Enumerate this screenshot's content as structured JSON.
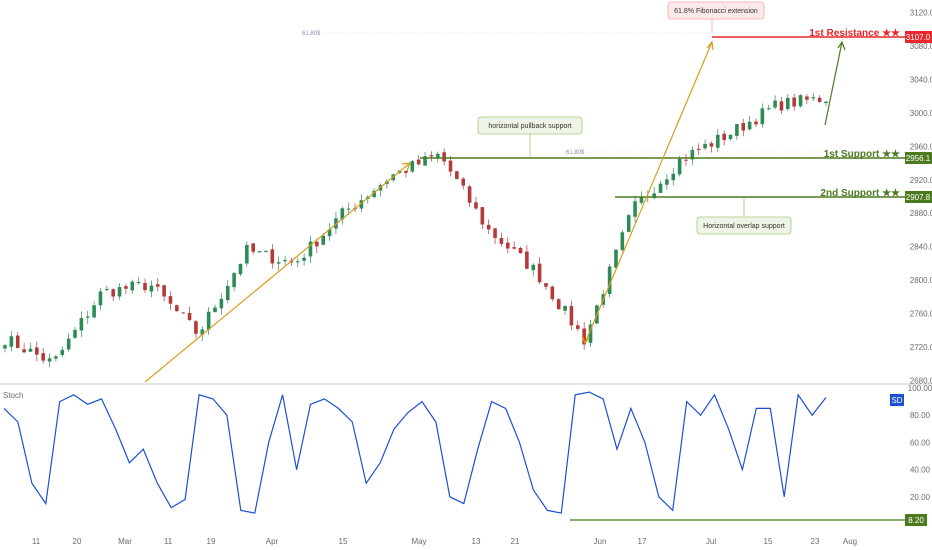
{
  "chart_data": [
    {
      "type": "candlestick",
      "title": "",
      "x_ticks": [
        "11",
        "20",
        "Mar",
        "11",
        "19",
        "Apr",
        "15",
        "May",
        "13",
        "21",
        "Jun",
        "17",
        "Jul",
        "15",
        "23",
        "Aug"
      ],
      "y_ticks": [
        3120.0,
        3080.0,
        3040.0,
        3000.0,
        2960.0,
        2920.0,
        2880.0,
        2840.0,
        2800.0,
        2760.0,
        2720.0,
        2680.0
      ],
      "ylim": [
        2678,
        3128
      ],
      "approx_close_path": [
        {
          "x": "early Feb",
          "y": 2730
        },
        {
          "x": "mid Feb",
          "y": 2700
        },
        {
          "x": "late Feb",
          "y": 2785
        },
        {
          "x": "early Mar",
          "y": 2795
        },
        {
          "x": "mid Mar",
          "y": 2735
        },
        {
          "x": "late Mar",
          "y": 2835
        },
        {
          "x": "early Apr",
          "y": 2820
        },
        {
          "x": "mid Apr",
          "y": 2880
        },
        {
          "x": "late Apr",
          "y": 2925
        },
        {
          "x": "1 May",
          "y": 2950
        },
        {
          "x": "mid May",
          "y": 2860
        },
        {
          "x": "late May",
          "y": 2810
        },
        {
          "x": "3 Jun",
          "y": 2728
        },
        {
          "x": "mid Jun",
          "y": 2885
        },
        {
          "x": "late Jun",
          "y": 2945
        },
        {
          "x": "early Jul",
          "y": 2975
        },
        {
          "x": "mid Jul",
          "y": 3010
        },
        {
          "x": "23 Jul",
          "y": 3018
        }
      ],
      "levels": [
        {
          "label": "1st Resistance ★★",
          "value": "3107.0",
          "color": "#e8262b"
        },
        {
          "label": "1st Support ★★",
          "value": "2956.1",
          "color": "#4c7a1f"
        },
        {
          "label": "2nd Support ★★",
          "value": "2907.8",
          "color": "#4c7a1f"
        }
      ],
      "fib_labels": [
        "61.80$",
        "61.80$"
      ],
      "annotations": [
        {
          "text": "61.8% Fibonacci extension"
        },
        {
          "text": "horizontal pullback support"
        },
        {
          "text": "Horizontal overlap support"
        }
      ]
    },
    {
      "type": "line",
      "label": "Stoch",
      "series_badge": "SD",
      "ylim": [
        0,
        100
      ],
      "y_ticks": [
        100.0,
        80.0,
        60.0,
        40.0,
        20.0
      ],
      "level": {
        "value": "8.20",
        "color": "#4c7a1f"
      },
      "line_color": "#1a4fd6"
    }
  ]
}
